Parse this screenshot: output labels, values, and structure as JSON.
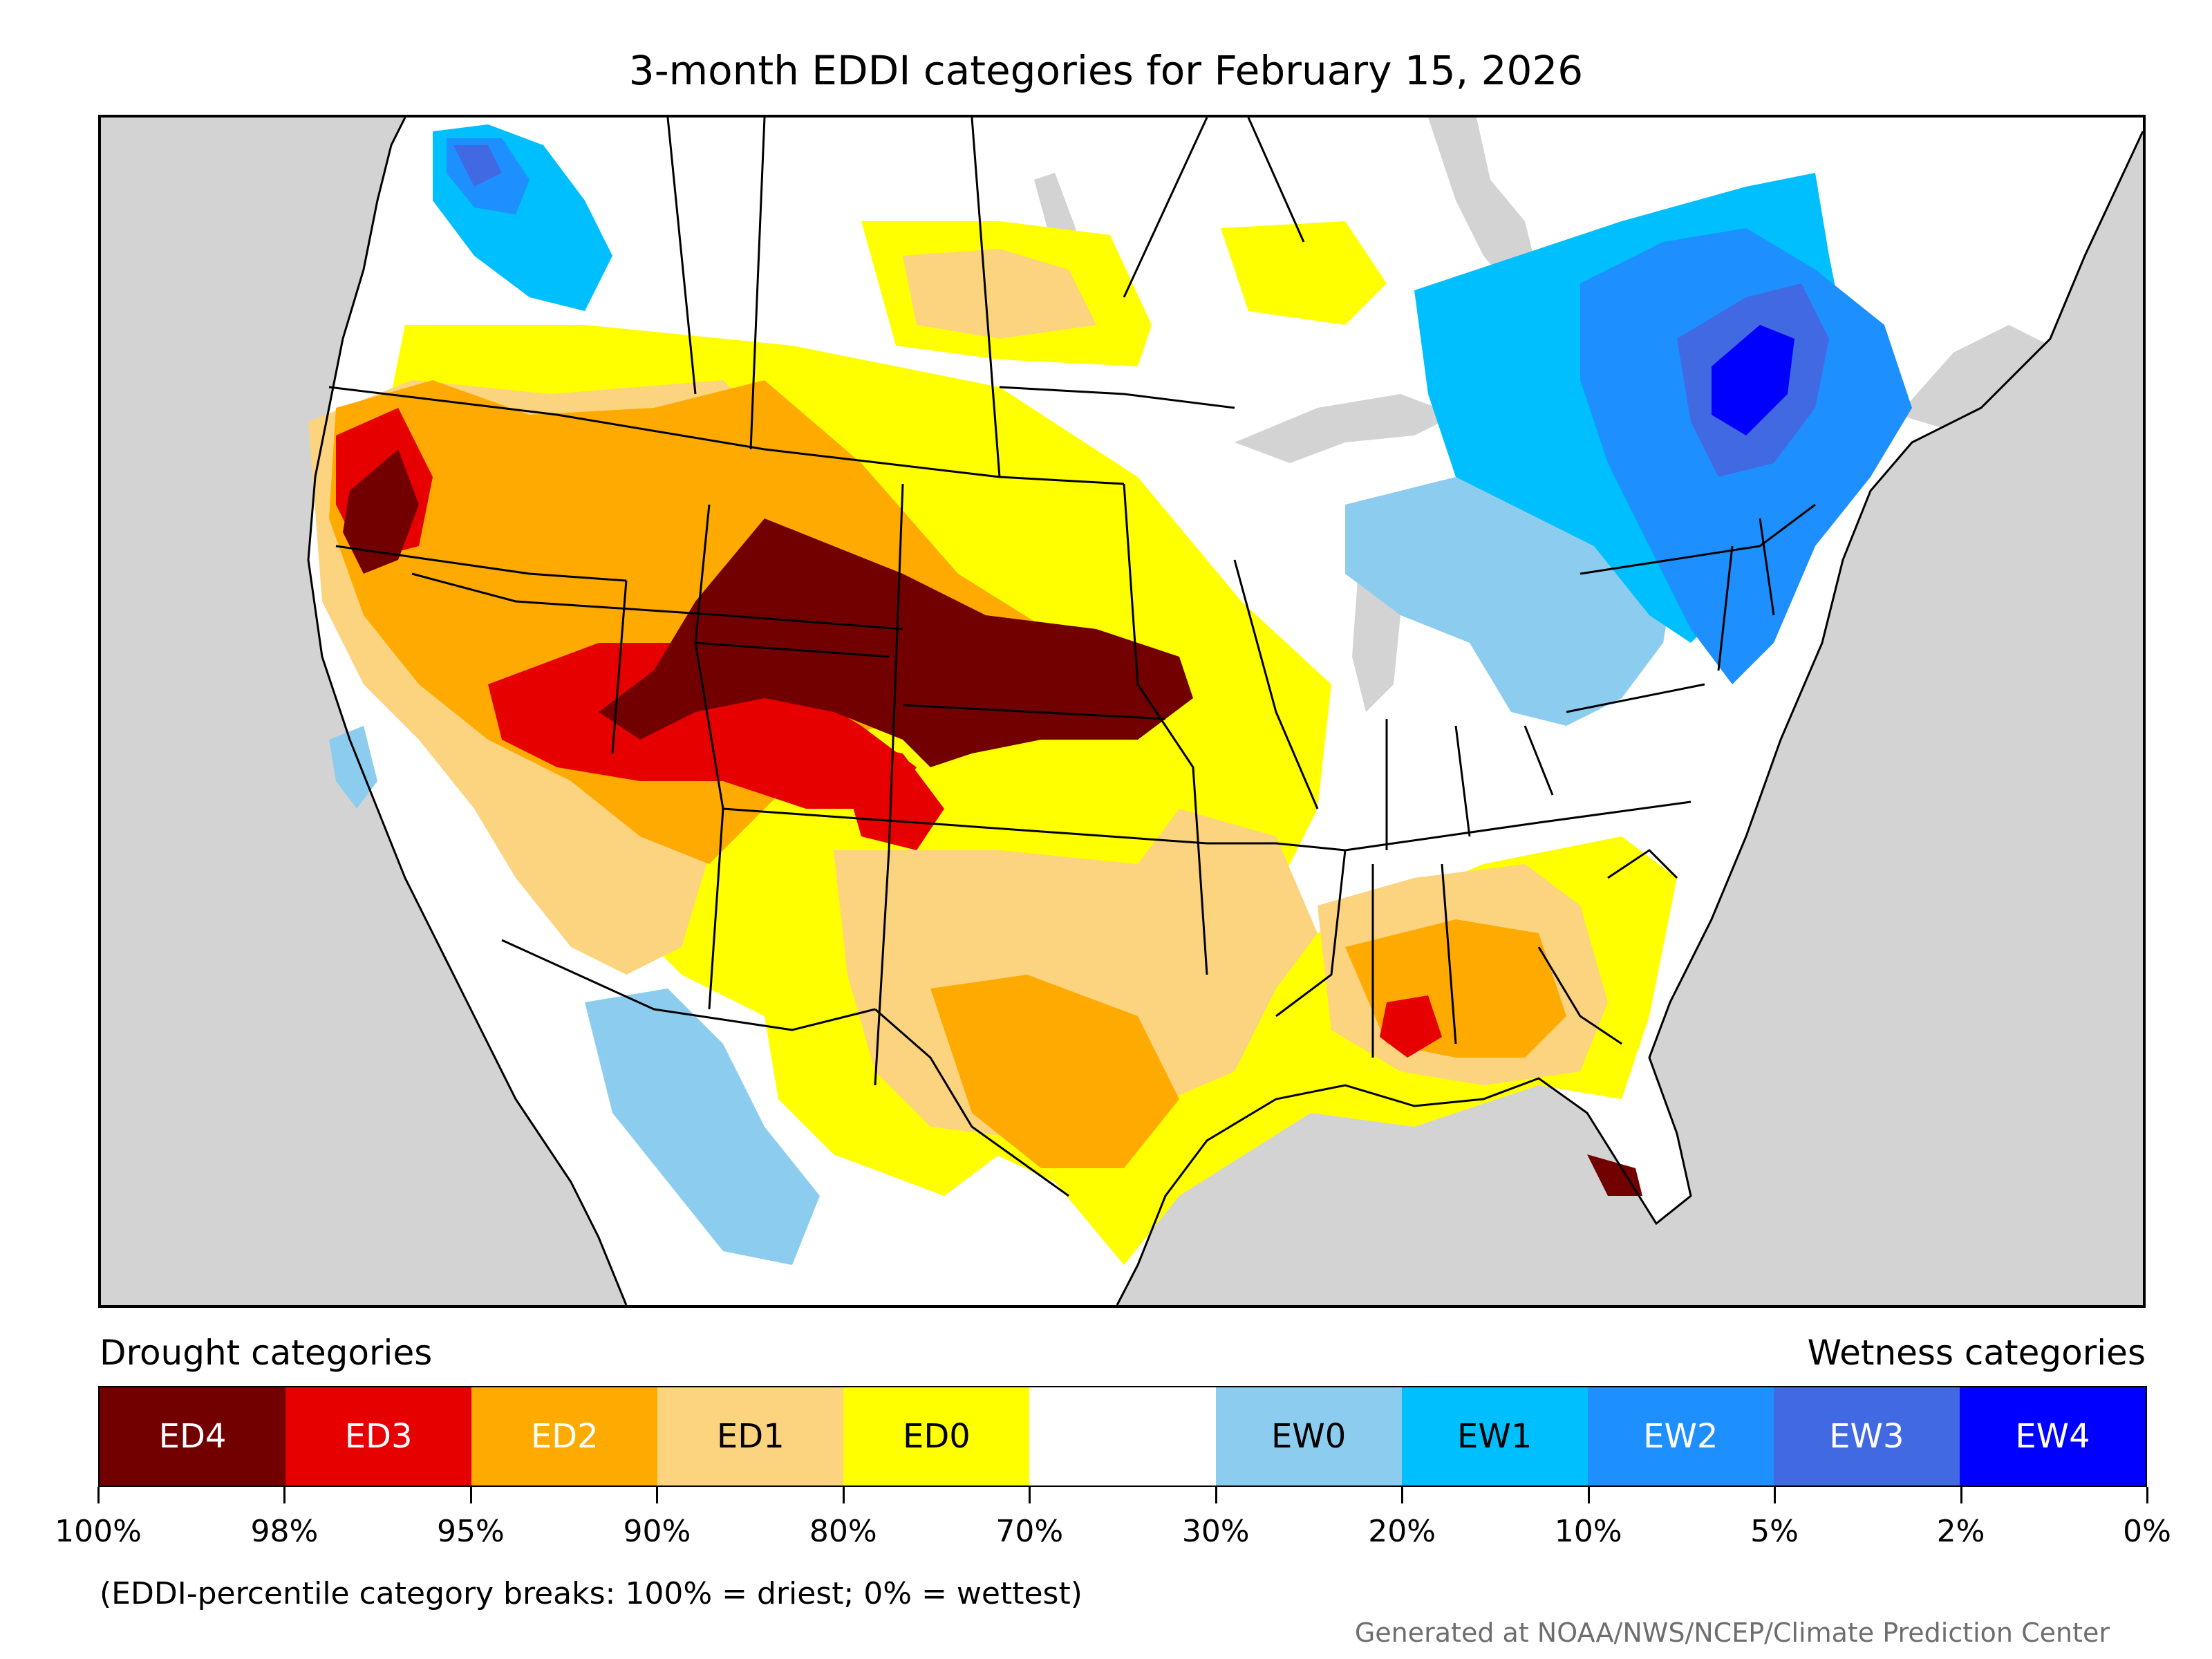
{
  "title": "3-month EDDI categories for February 15, 2026",
  "legend": {
    "drought_heading": "Drought categories",
    "wetness_heading": "Wetness categories",
    "categories": [
      {
        "label": "ED4",
        "color": "#730000",
        "text_color": "#ffffff"
      },
      {
        "label": "ED3",
        "color": "#e60000",
        "text_color": "#ffffff"
      },
      {
        "label": "ED2",
        "color": "#ffaa00",
        "text_color": "#ffffff"
      },
      {
        "label": "ED1",
        "color": "#fcd37f",
        "text_color": "#000000"
      },
      {
        "label": "ED0",
        "color": "#ffff00",
        "text_color": "#000000"
      },
      {
        "label": "",
        "color": "#ffffff",
        "text_color": "#000000"
      },
      {
        "label": "EW0",
        "color": "#8ccdef",
        "text_color": "#000000"
      },
      {
        "label": "EW1",
        "color": "#00bfff",
        "text_color": "#000000"
      },
      {
        "label": "EW2",
        "color": "#1e8fff",
        "text_color": "#ffffff"
      },
      {
        "label": "EW3",
        "color": "#4169e1",
        "text_color": "#ffffff"
      },
      {
        "label": "EW4",
        "color": "#0000ff",
        "text_color": "#ffffff"
      }
    ],
    "breaks": [
      "100%",
      "98%",
      "95%",
      "90%",
      "80%",
      "70%",
      "30%",
      "20%",
      "10%",
      "5%",
      "2%",
      "0%"
    ]
  },
  "footnote": "(EDDI-percentile category breaks: 100% = driest; 0% = wettest)",
  "credit": "Generated at NOAA/NWS/NCEP/Climate Prediction Center",
  "map": {
    "background_color": "#d3d3d3",
    "land_color": "#ffffff",
    "regions": [
      {
        "name": "ed4-central-rockies-plains",
        "category": "ED4"
      },
      {
        "name": "ed4-oregon",
        "category": "ED4"
      },
      {
        "name": "ed4-florida",
        "category": "ED4"
      },
      {
        "name": "ed3-great-basin",
        "category": "ED3"
      },
      {
        "name": "ed3-colorado-front-range",
        "category": "ED3"
      },
      {
        "name": "ed3-georgia",
        "category": "ED3"
      },
      {
        "name": "ed2-west",
        "category": "ED2"
      },
      {
        "name": "ed2-texas",
        "category": "ED2"
      },
      {
        "name": "ed2-southeast",
        "category": "ED2"
      },
      {
        "name": "ed1-southwest",
        "category": "ED1"
      },
      {
        "name": "ed1-southern-plains",
        "category": "ED1"
      },
      {
        "name": "ed0-plains",
        "category": "ED0"
      },
      {
        "name": "ed0-texas-mexico",
        "category": "ED0"
      },
      {
        "name": "ed0-prairies",
        "category": "ED0"
      },
      {
        "name": "ew0-great-lakes",
        "category": "EW0"
      },
      {
        "name": "ew0-mexico",
        "category": "EW0"
      },
      {
        "name": "ew1-quebec-ontario",
        "category": "EW1"
      },
      {
        "name": "ew1-british-columbia",
        "category": "EW1"
      },
      {
        "name": "ew2-new-york-new-england",
        "category": "EW2"
      },
      {
        "name": "ew3-st-lawrence",
        "category": "EW3"
      },
      {
        "name": "ew4-st-lawrence-core",
        "category": "EW4"
      }
    ]
  }
}
